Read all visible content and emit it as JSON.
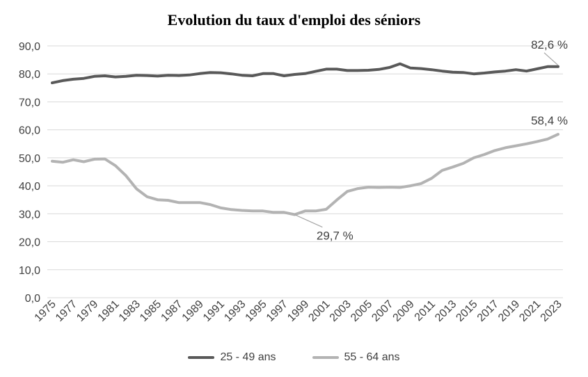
{
  "chart_data": {
    "type": "line",
    "title": "Evolution du taux d'emploi des séniors",
    "xlabel": "",
    "ylabel": "",
    "ylim": [
      0,
      90
    ],
    "yticks": [
      "0,0",
      "10,0",
      "20,0",
      "30,0",
      "40,0",
      "50,0",
      "60,0",
      "70,0",
      "80,0",
      "90,0"
    ],
    "grid": true,
    "legend_position": "bottom",
    "x": [
      1975,
      1976,
      1977,
      1978,
      1979,
      1980,
      1981,
      1982,
      1983,
      1984,
      1985,
      1986,
      1987,
      1988,
      1989,
      1990,
      1991,
      1992,
      1993,
      1994,
      1995,
      1996,
      1997,
      1998,
      1999,
      2000,
      2001,
      2002,
      2003,
      2004,
      2005,
      2006,
      2007,
      2008,
      2009,
      2010,
      2011,
      2012,
      2013,
      2014,
      2015,
      2016,
      2017,
      2018,
      2019,
      2020,
      2021,
      2022,
      2023
    ],
    "xtick_labels": [
      "1975",
      "1977",
      "1979",
      "1981",
      "1983",
      "1985",
      "1987",
      "1989",
      "1991",
      "1993",
      "1995",
      "1997",
      "1999",
      "2001",
      "2003",
      "2005",
      "2007",
      "2009",
      "2011",
      "2013",
      "2015",
      "2017",
      "2019",
      "2021",
      "2023"
    ],
    "series": [
      {
        "name": "25 - 49 ans",
        "color": "#595959",
        "values": [
          76.8,
          77.6,
          78.1,
          78.4,
          79.1,
          79.3,
          78.9,
          79.1,
          79.5,
          79.4,
          79.2,
          79.5,
          79.4,
          79.6,
          80.1,
          80.5,
          80.4,
          80.0,
          79.5,
          79.3,
          80.1,
          80.1,
          79.3,
          79.8,
          80.1,
          80.9,
          81.7,
          81.7,
          81.2,
          81.2,
          81.3,
          81.6,
          82.3,
          83.6,
          82.1,
          81.9,
          81.5,
          81.0,
          80.6,
          80.5,
          80.0,
          80.3,
          80.7,
          81.0,
          81.5,
          81.0,
          81.8,
          82.6,
          82.6
        ]
      },
      {
        "name": "55 - 64 ans",
        "color": "#b3b3b3",
        "values": [
          48.8,
          48.4,
          49.3,
          48.6,
          49.5,
          49.6,
          47.2,
          43.6,
          38.9,
          36.1,
          35.0,
          34.8,
          34.0,
          34.0,
          34.0,
          33.3,
          32.1,
          31.5,
          31.2,
          31.0,
          31.0,
          30.5,
          30.5,
          29.7,
          31.0,
          31.0,
          31.6,
          34.9,
          38.0,
          39.0,
          39.5,
          39.4,
          39.5,
          39.4,
          40.0,
          40.8,
          42.7,
          45.5,
          46.7,
          48.0,
          50.0,
          51.2,
          52.6,
          53.6,
          54.3,
          55.0,
          55.8,
          56.7,
          58.4
        ]
      }
    ],
    "annotations": [
      {
        "text": "82,6 %",
        "series": 0,
        "x": 2023,
        "y": 82.6
      },
      {
        "text": "58,4 %",
        "series": 1,
        "x": 2023,
        "y": 58.4
      },
      {
        "text": "29,7 %",
        "series": 1,
        "x": 1998,
        "y": 29.7
      }
    ]
  }
}
